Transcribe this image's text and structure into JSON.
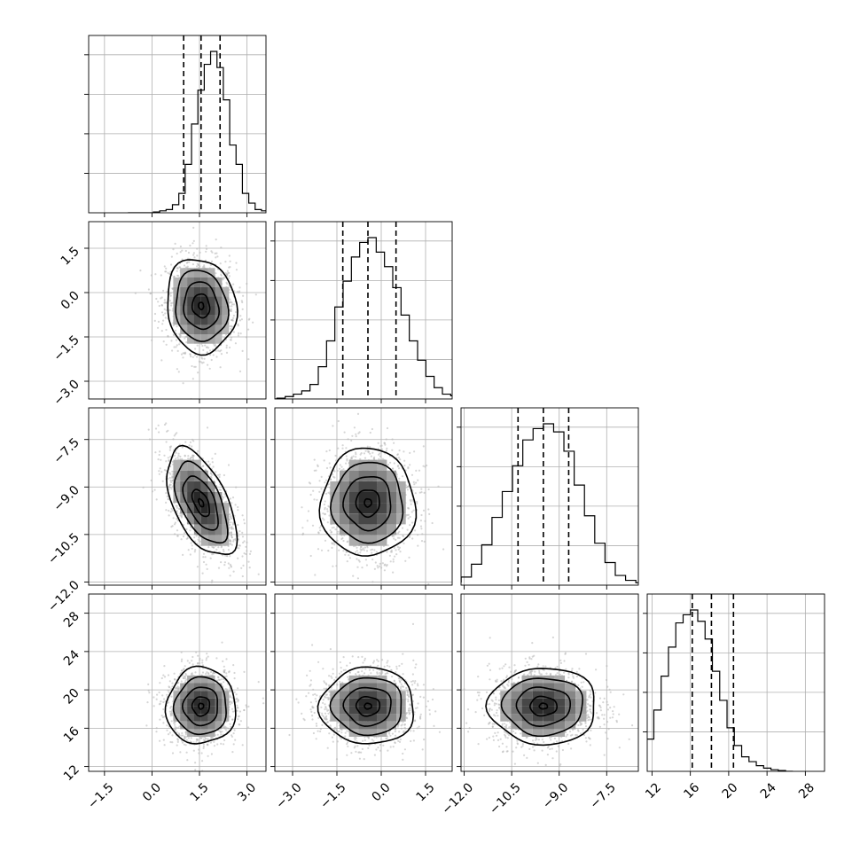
{
  "chart_data": {
    "type": "corner",
    "grid": true,
    "quantile_lines": "dashed",
    "colors": {
      "ink": "#000000",
      "gridline": "#b0b0b0",
      "scatter": "#b5b5b5"
    },
    "parameters": [
      {
        "index": 0,
        "range": [
          -2.0,
          3.6
        ],
        "ticks": [
          "−1.5",
          "0.0",
          "1.5",
          "3.0"
        ],
        "tick_values": [
          -1.5,
          0.0,
          1.5,
          3.0
        ],
        "mean": 1.55,
        "std": 0.55,
        "quantiles": [
          1.0,
          1.55,
          2.15
        ]
      },
      {
        "index": 1,
        "range": [
          -3.6,
          2.4
        ],
        "ticks": [
          "−3.0",
          "−1.5",
          "0.0",
          "1.5"
        ],
        "tick_values": [
          -3.0,
          -1.5,
          0.0,
          1.5
        ],
        "mean": -0.45,
        "std": 0.8,
        "quantiles": [
          -1.3,
          -0.45,
          0.5
        ]
      },
      {
        "index": 2,
        "range": [
          -12.1,
          -6.5
        ],
        "ticks": [
          "−12.0",
          "−10.5",
          "−9.0",
          "−7.5"
        ],
        "tick_values": [
          -12.0,
          -10.5,
          -9.0,
          -7.5
        ],
        "mean": -9.5,
        "std": 0.85,
        "quantiles": [
          -10.3,
          -9.5,
          -8.7
        ]
      },
      {
        "index": 3,
        "range": [
          11.5,
          30.0
        ],
        "ticks": [
          "12",
          "16",
          "20",
          "24",
          "28"
        ],
        "tick_values": [
          12,
          16,
          20,
          24,
          28
        ],
        "mean": 18.3,
        "std": 2.0,
        "quantiles": [
          16.2,
          18.2,
          20.5
        ]
      }
    ],
    "hist_counts": {
      "p0": [
        0.0,
        0.0,
        0.0,
        0.0,
        0.005,
        0.012,
        0.02,
        0.05,
        0.12,
        0.3,
        0.55,
        0.76,
        0.92,
        1.0,
        0.9,
        0.7,
        0.42,
        0.3,
        0.12,
        0.06,
        0.02,
        0.012,
        0.0
      ],
      "p1": [
        0.0,
        0.005,
        0.015,
        0.03,
        0.05,
        0.09,
        0.2,
        0.36,
        0.57,
        0.73,
        0.88,
        0.97,
        1.0,
        0.91,
        0.82,
        0.69,
        0.52,
        0.36,
        0.24,
        0.14,
        0.07,
        0.03,
        0.02,
        0.01
      ],
      "p2": [
        0.0,
        0.01,
        0.02,
        0.05,
        0.13,
        0.25,
        0.42,
        0.58,
        0.74,
        0.9,
        0.97,
        1.0,
        0.95,
        0.83,
        0.62,
        0.43,
        0.26,
        0.14,
        0.06,
        0.03,
        0.015,
        0.005
      ],
      "p3": [
        0.02,
        0.06,
        0.2,
        0.38,
        0.59,
        0.77,
        0.92,
        0.97,
        1.0,
        0.93,
        0.82,
        0.62,
        0.44,
        0.27,
        0.16,
        0.09,
        0.06,
        0.035,
        0.02,
        0.01,
        0.005,
        0.0
      ]
    },
    "correlations": {
      "p0_p1": -0.1,
      "p0_p2": -0.55,
      "p0_p3": 0.02,
      "p1_p2": 0.0,
      "p1_p3": 0.0,
      "p2_p3": 0.0
    }
  }
}
